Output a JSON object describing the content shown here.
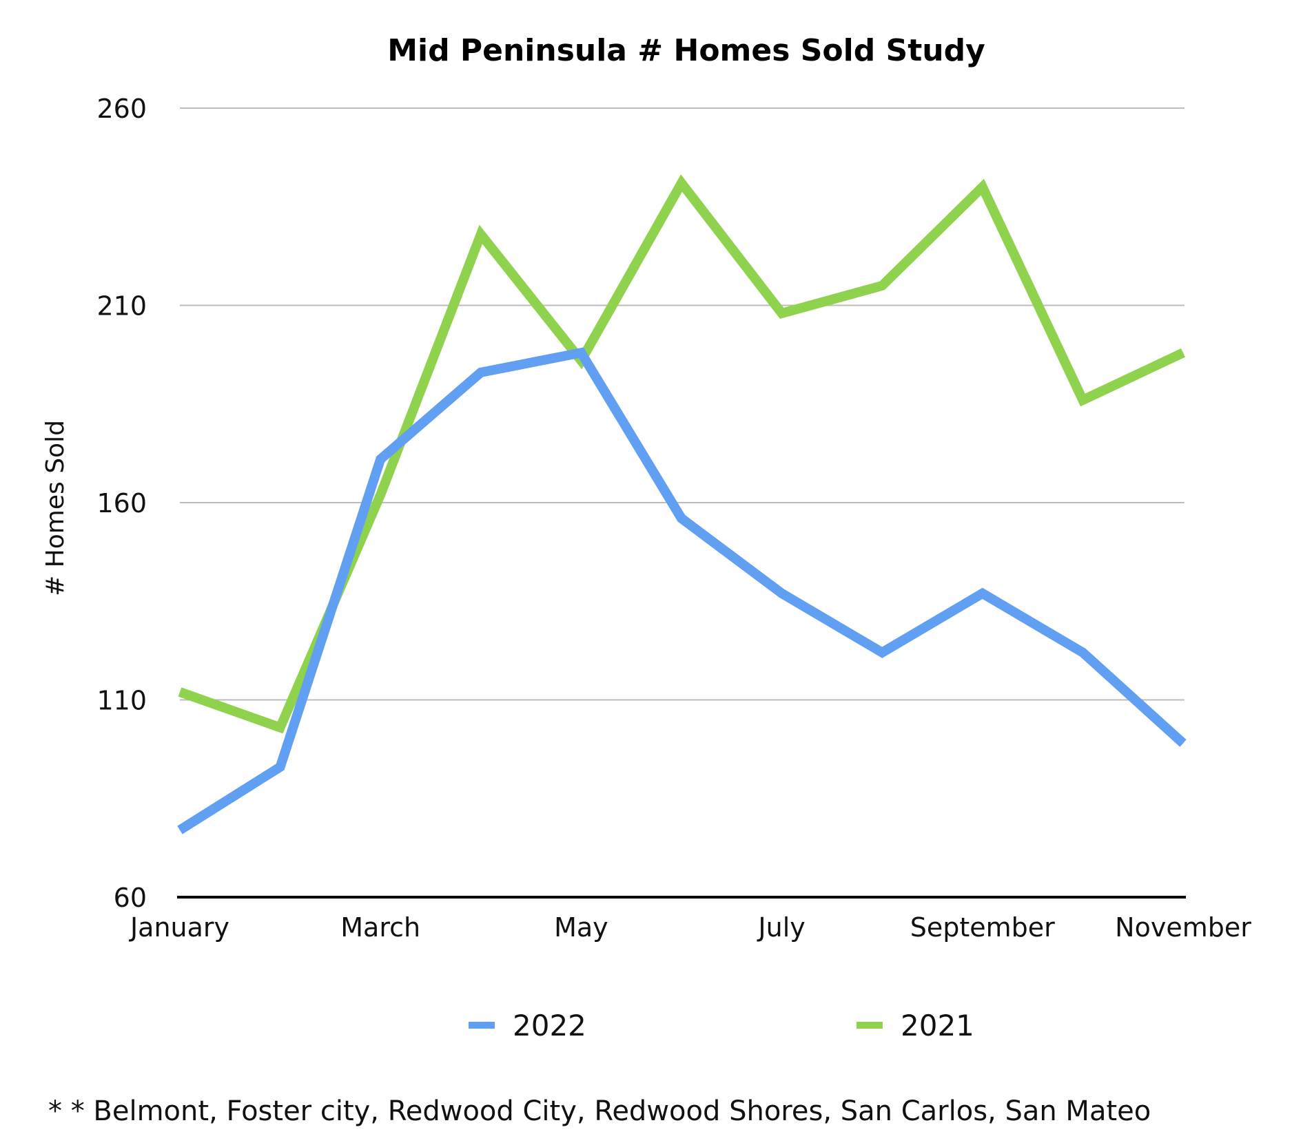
{
  "chart_data": {
    "type": "line",
    "title": "Mid Peninsula # Homes Sold Study",
    "xlabel": "",
    "ylabel": "# Homes Sold",
    "ylim": [
      60,
      260
    ],
    "yticks": [
      60,
      110,
      160,
      210,
      260
    ],
    "categories": [
      "January",
      "February",
      "March",
      "April",
      "May",
      "June",
      "July",
      "August",
      "September",
      "October",
      "November"
    ],
    "xtick_labels": [
      "January",
      "",
      "March",
      "",
      "May",
      "",
      "July",
      "",
      "September",
      "",
      "November"
    ],
    "grid": true,
    "legend_position": "bottom",
    "series": [
      {
        "name": "2022",
        "color": "#609ff2",
        "values": [
          77,
          93,
          171,
          193,
          198,
          156,
          137,
          122,
          137,
          122,
          99
        ]
      },
      {
        "name": "2021",
        "color": "#8fd24d",
        "values": [
          112,
          103,
          162,
          228,
          196,
          241,
          208,
          215,
          240,
          186,
          198
        ]
      }
    ],
    "footnote": "* * Belmont, Foster city, Redwood City, Redwood Shores, San Carlos, San Mateo"
  }
}
